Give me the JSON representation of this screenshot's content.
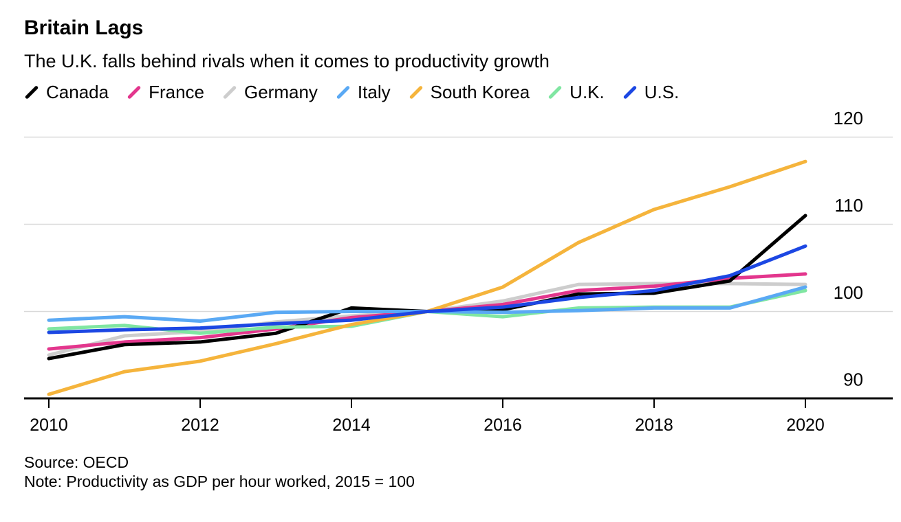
{
  "header": {
    "title": "Britain Lags",
    "subtitle": "The U.K. falls behind rivals when it comes to productivity growth"
  },
  "footer": {
    "source": "Source: OECD",
    "note": "Note: Productivity as GDP per hour worked, 2015 = 100"
  },
  "chart_data": {
    "type": "line",
    "title": "Britain Lags",
    "subtitle": "The U.K. falls behind rivals when it comes to productivity growth",
    "xlabel": "",
    "ylabel": "",
    "x": [
      2010,
      2011,
      2012,
      2013,
      2014,
      2015,
      2016,
      2017,
      2018,
      2019,
      2020
    ],
    "xticks": [
      2010,
      2012,
      2014,
      2016,
      2018,
      2020
    ],
    "yticks": [
      90,
      100,
      110,
      120
    ],
    "ylim": [
      90,
      120
    ],
    "grid": "horizontal",
    "legend_position": "top",
    "index_note": "2015 = 100",
    "series": [
      {
        "name": "Canada",
        "color": "#000000",
        "values": [
          94.6,
          96.2,
          96.5,
          97.5,
          100.4,
          100,
          100.2,
          102.0,
          102.1,
          103.5,
          111.0
        ]
      },
      {
        "name": "France",
        "color": "#E3368D",
        "values": [
          95.7,
          96.5,
          97.0,
          98.0,
          99.3,
          100,
          100.8,
          102.4,
          102.9,
          103.8,
          104.3
        ]
      },
      {
        "name": "Germany",
        "color": "#CDCDCD",
        "values": [
          95.0,
          97.2,
          97.7,
          98.8,
          99.5,
          100,
          101.2,
          103.1,
          103.2,
          103.2,
          103.1
        ]
      },
      {
        "name": "Italy",
        "color": "#5AA9F4",
        "values": [
          99.0,
          99.4,
          98.9,
          99.9,
          100.0,
          100,
          99.9,
          100.1,
          100.4,
          100.4,
          102.8
        ]
      },
      {
        "name": "South Korea",
        "color": "#F5B43C",
        "values": [
          90.5,
          93.1,
          94.3,
          96.3,
          98.5,
          100,
          102.8,
          107.9,
          111.7,
          114.3,
          117.2
        ]
      },
      {
        "name": "U.K.",
        "color": "#80E6A2",
        "values": [
          98.0,
          98.4,
          97.5,
          98.2,
          98.3,
          100,
          99.4,
          100.4,
          100.5,
          100.5,
          102.4
        ]
      },
      {
        "name": "U.S.",
        "color": "#1C47E3",
        "values": [
          97.6,
          97.9,
          98.1,
          98.6,
          99.0,
          100,
          100.5,
          101.6,
          102.4,
          104.1,
          107.5
        ]
      }
    ],
    "draw_order": [
      "Germany",
      "France",
      "Canada",
      "U.K.",
      "Italy",
      "South Korea",
      "U.S."
    ],
    "colors": {
      "gridline": "#D9D9D9",
      "axis": "#000000",
      "background": "#FFFFFF"
    }
  }
}
